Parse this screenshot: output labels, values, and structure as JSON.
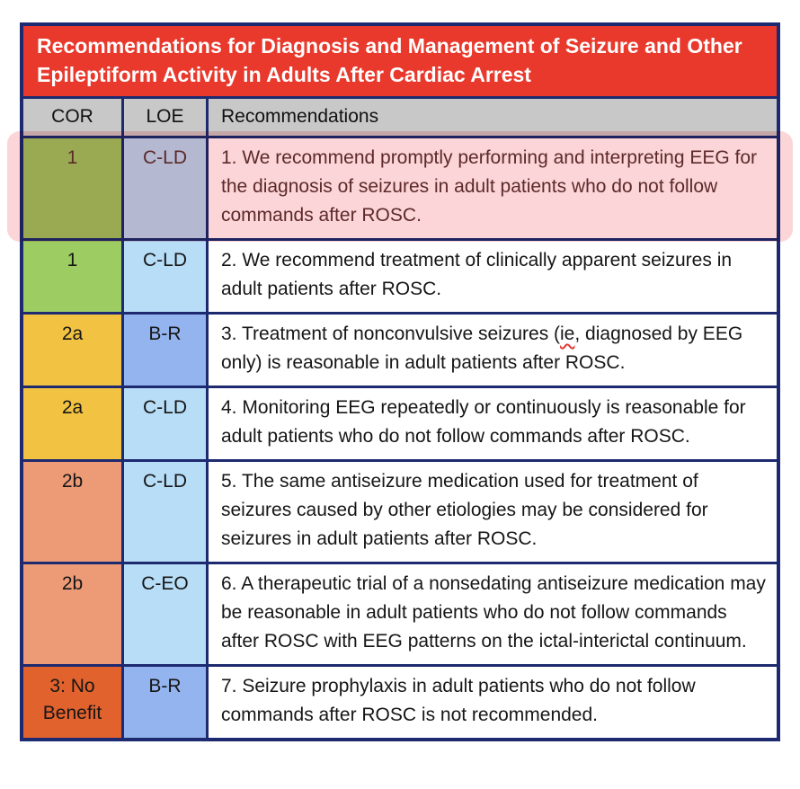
{
  "title": "Recommendations for Diagnosis and Management of Seizure and Other Epileptiform Activity in Adults After Cardiac Arrest",
  "columns": {
    "cor": "COR",
    "loe": "LOE",
    "recommendations": "Recommendations"
  },
  "palette": {
    "border_navy": "#1E2A70",
    "title_red": "#E9392C",
    "header_gray": "#C8C8C8",
    "cor_green": "#9CCC62",
    "cor_yellow": "#F2C342",
    "cor_salmon": "#EC9B76",
    "cor_orange": "#E2622E",
    "loe_light_blue": "#B7DDF7",
    "loe_medium_blue": "#93B4EF",
    "highlight_pink": "#FBD5D7",
    "highlight_text": "#5E3132",
    "squiggle_red": "#E53935"
  },
  "rows": [
    {
      "cor": "1",
      "loe": "C-LD",
      "text": "1. We recommend promptly performing and interpreting EEG for the diagnosis of seizures in adult patients who do not follow commands after ROSC.",
      "highlighted": true,
      "cor_color": "#9CCC62",
      "loe_color": "#B7DDF7"
    },
    {
      "cor": "1",
      "loe": "C-LD",
      "text": "2. We recommend treatment of clinically apparent seizures in adult patients after ROSC.",
      "cor_color": "#9CCC62",
      "loe_color": "#B7DDF7"
    },
    {
      "cor": "2a",
      "loe": "B-R",
      "text": "3. Treatment of nonconvulsive seizures (ie, diagnosed by EEG only) is reasonable in adult patients after ROSC.",
      "squiggle_word": "ie",
      "cor_color": "#F2C342",
      "loe_color": "#93B4EF"
    },
    {
      "cor": "2a",
      "loe": "C-LD",
      "text": "4. Monitoring EEG repeatedly or continuously is reasonable for adult patients who do not follow commands after ROSC.",
      "cor_color": "#F2C342",
      "loe_color": "#B7DDF7"
    },
    {
      "cor": "2b",
      "loe": "C-LD",
      "text": "5. The same antiseizure medication used for treatment of seizures caused by other etiologies may be considered for seizures in adult patients after ROSC.",
      "cor_color": "#EC9B76",
      "loe_color": "#B7DDF7"
    },
    {
      "cor": "2b",
      "loe": "C-EO",
      "text": "6. A therapeutic trial of a nonsedating antiseizure medication may be reasonable in adult patients who do not follow commands after ROSC with EEG patterns on the ictal-interictal continuum.",
      "cor_color": "#EC9B76",
      "loe_color": "#B7DDF7"
    },
    {
      "cor": "3: No Benefit",
      "loe": "B-R",
      "text": "7. Seizure prophylaxis in adult patients who do not follow commands after ROSC is not recommended.",
      "cor_color": "#E2622E",
      "loe_color": "#93B4EF"
    }
  ]
}
